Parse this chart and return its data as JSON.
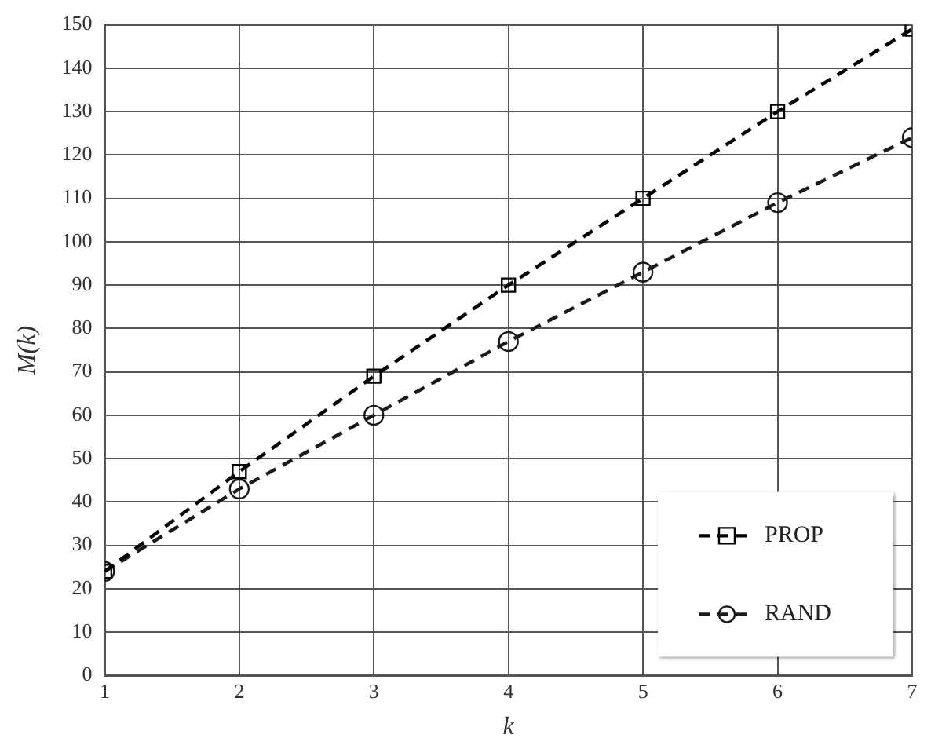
{
  "chart_data": {
    "type": "line",
    "xlabel": "k",
    "ylabel": "M(k)",
    "x": [
      1,
      2,
      3,
      4,
      5,
      6,
      7
    ],
    "xlim": [
      1,
      7
    ],
    "xticks": [
      1,
      2,
      3,
      4,
      5,
      6,
      7
    ],
    "ylim": [
      0,
      150
    ],
    "yticks": [
      0,
      10,
      20,
      30,
      40,
      50,
      60,
      70,
      80,
      90,
      100,
      110,
      120,
      130,
      140,
      150
    ],
    "grid": true,
    "legend": "bottom right",
    "line_style": "dashed",
    "series": [
      {
        "name": "PROP",
        "color": "#000000",
        "marker": "square",
        "values": [
          24,
          47,
          69,
          90,
          110,
          130,
          149
        ]
      },
      {
        "name": "RAND",
        "color": "#1a1a1a",
        "marker": "circle",
        "values": [
          24,
          43,
          60,
          77,
          93,
          109,
          124
        ]
      }
    ]
  }
}
